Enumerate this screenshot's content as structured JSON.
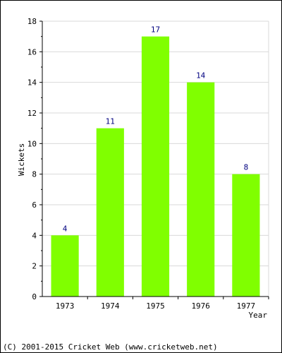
{
  "chart_data": {
    "type": "bar",
    "categories": [
      "1973",
      "1974",
      "1975",
      "1976",
      "1977"
    ],
    "values": [
      4,
      11,
      17,
      14,
      8
    ],
    "data_labels": [
      "4",
      "11",
      "17",
      "14",
      "8"
    ],
    "xlabel": "Year",
    "ylabel": "Wickets",
    "ylim": [
      0,
      18
    ],
    "yticks": [
      "0",
      "2",
      "4",
      "6",
      "8",
      "10",
      "12",
      "14",
      "16",
      "18"
    ],
    "grid": true,
    "colors": {
      "bar": "#80ff00",
      "data_label": "#000080",
      "grid": "#d9d9d9"
    }
  },
  "footer": {
    "copyright": "(C) 2001-2015 Cricket Web (www.cricketweb.net)"
  }
}
